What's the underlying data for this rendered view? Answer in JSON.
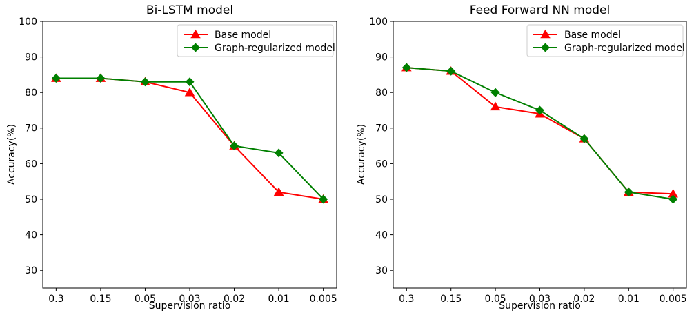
{
  "figure": {
    "background": "#ffffff"
  },
  "chart_data": [
    {
      "type": "line",
      "title": "Bi-LSTM model",
      "xlabel": "Supervision ratio",
      "ylabel": "Accuracy(%)",
      "categories": [
        "0.3",
        "0.15",
        "0.05",
        "0.03",
        "0.02",
        "0.01",
        "0.005"
      ],
      "ylim": [
        25,
        100
      ],
      "yticks": [
        30,
        40,
        50,
        60,
        70,
        80,
        90,
        100
      ],
      "grid": false,
      "legend_position": "upper right",
      "series": [
        {
          "name": "Base model",
          "color": "#ff0000",
          "marker": "triangle-up",
          "values": [
            84,
            84,
            83,
            80,
            65,
            52,
            50
          ]
        },
        {
          "name": "Graph-regularized model",
          "color": "#008000",
          "marker": "diamond",
          "values": [
            84,
            84,
            83,
            83,
            65,
            63,
            50
          ]
        }
      ]
    },
    {
      "type": "line",
      "title": "Feed Forward NN model",
      "xlabel": "Supervision ratio",
      "ylabel": "Accuracy(%)",
      "categories": [
        "0.3",
        "0.15",
        "0.05",
        "0.03",
        "0.02",
        "0.01",
        "0.005"
      ],
      "ylim": [
        25,
        100
      ],
      "yticks": [
        30,
        40,
        50,
        60,
        70,
        80,
        90,
        100
      ],
      "grid": false,
      "legend_position": "upper right",
      "series": [
        {
          "name": "Base model",
          "color": "#ff0000",
          "marker": "triangle-up",
          "values": [
            87,
            86,
            76,
            74,
            67,
            52,
            51.5
          ]
        },
        {
          "name": "Graph-regularized model",
          "color": "#008000",
          "marker": "diamond",
          "values": [
            87,
            86,
            80,
            75,
            67,
            52,
            50
          ]
        }
      ]
    }
  ]
}
